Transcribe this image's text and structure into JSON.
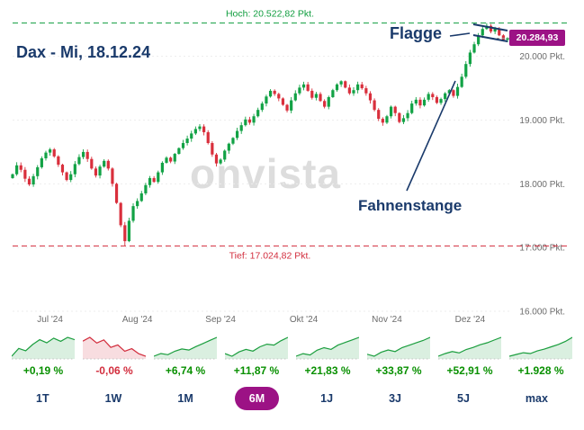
{
  "header": {
    "title": "Dax - Mi, 18.12.24"
  },
  "watermark": "onvista",
  "chart_data": {
    "type": "candlestick",
    "title": "Dax - Mi, 18.12.24",
    "hoch_label": "Hoch: 20.522,82 Pkt.",
    "tief_label": "Tief: 17.024,82 Pkt.",
    "hoch_value": 20522.82,
    "tief_value": 17024.82,
    "last_price": 20284.93,
    "last_price_label": "20.284,93",
    "y_range": [
      16000,
      20800
    ],
    "y_ticks": [
      {
        "value": 20000,
        "label": "20.000 Pkt."
      },
      {
        "value": 19000,
        "label": "19.000 Pkt."
      },
      {
        "value": 18000,
        "label": "18.000 Pkt."
      },
      {
        "value": 17000,
        "label": "17.000 Pkt."
      },
      {
        "value": 16000,
        "label": "16.000 Pkt."
      }
    ],
    "x_ticks": [
      {
        "index": 9,
        "label": "Jul '24"
      },
      {
        "index": 30,
        "label": "Aug '24"
      },
      {
        "index": 50,
        "label": "Sep '24"
      },
      {
        "index": 70,
        "label": "Okt '24"
      },
      {
        "index": 90,
        "label": "Nov '24"
      },
      {
        "index": 110,
        "label": "Dez '24"
      }
    ],
    "closes": [
      18150,
      18290,
      18220,
      18080,
      17990,
      18120,
      18260,
      18400,
      18490,
      18540,
      18430,
      18300,
      18180,
      18060,
      18150,
      18310,
      18420,
      18500,
      18390,
      18240,
      18130,
      18270,
      18360,
      18240,
      18000,
      17700,
      17350,
      17100,
      17420,
      17650,
      17730,
      17850,
      17980,
      18090,
      18030,
      18180,
      18330,
      18410,
      18350,
      18470,
      18560,
      18640,
      18710,
      18790,
      18860,
      18900,
      18810,
      18640,
      18460,
      18320,
      18380,
      18520,
      18630,
      18720,
      18830,
      18920,
      19010,
      18960,
      19060,
      19160,
      19260,
      19370,
      19460,
      19410,
      19340,
      19240,
      19150,
      19310,
      19420,
      19510,
      19560,
      19460,
      19350,
      19410,
      19300,
      19210,
      19360,
      19470,
      19560,
      19610,
      19510,
      19420,
      19470,
      19560,
      19500,
      19420,
      19310,
      19160,
      19020,
      18960,
      19060,
      19210,
      19110,
      18970,
      19030,
      19110,
      19260,
      19320,
      19230,
      19320,
      19410,
      19360,
      19270,
      19330,
      19420,
      19470,
      19380,
      19520,
      19680,
      19880,
      20060,
      20190,
      20330,
      20430,
      20480,
      20390,
      20440,
      20330,
      20260,
      20284.93
    ],
    "annotations": [
      {
        "text": "Flagge"
      },
      {
        "text": "Fahnenstange"
      }
    ],
    "colors": {
      "up": "#12a245",
      "down": "#d92f3c",
      "hoch": "#0f9d3e",
      "tief": "#d22d3d",
      "annotation": "#1a3a6b",
      "badge": "#9c1285",
      "axis_text": "#6b6b6b"
    }
  },
  "mini_charts": [
    {
      "label": "+0,19 %",
      "trend": "up",
      "values": [
        4.5,
        5.5,
        5.2,
        6.0,
        6.6,
        6.2,
        6.8,
        6.4,
        6.9,
        6.6
      ]
    },
    {
      "label": "-0,06 %",
      "trend": "down",
      "values": [
        6.2,
        6.8,
        5.9,
        6.4,
        5.2,
        5.6,
        4.6,
        5.0,
        4.2,
        3.8
      ]
    },
    {
      "label": "+6,74 %",
      "trend": "up",
      "values": [
        2.5,
        3.2,
        2.9,
        3.8,
        4.4,
        4.1,
        5.0,
        5.8,
        6.6,
        7.4
      ]
    },
    {
      "label": "+11,87 %",
      "trend": "up",
      "values": [
        3.0,
        2.4,
        3.4,
        4.0,
        3.6,
        4.6,
        5.2,
        5.0,
        6.0,
        6.8
      ]
    },
    {
      "label": "+21,83 %",
      "trend": "up",
      "values": [
        2.8,
        3.4,
        3.1,
        4.2,
        4.8,
        4.4,
        5.4,
        6.0,
        6.6,
        7.2
      ]
    },
    {
      "label": "+33,87 %",
      "trend": "up",
      "values": [
        3.5,
        3.0,
        4.0,
        4.6,
        4.2,
        5.2,
        5.8,
        6.4,
        7.0,
        7.8
      ]
    },
    {
      "label": "+52,91 %",
      "trend": "up",
      "values": [
        2.6,
        3.4,
        4.0,
        3.6,
        4.6,
        5.2,
        6.0,
        6.6,
        7.4,
        8.2
      ]
    },
    {
      "label": "+1.928 %",
      "trend": "up",
      "values": [
        2.0,
        2.6,
        3.2,
        2.9,
        3.8,
        4.4,
        5.2,
        6.0,
        7.0,
        8.4
      ]
    }
  ],
  "period_tabs": [
    {
      "label": "1T",
      "active": false
    },
    {
      "label": "1W",
      "active": false
    },
    {
      "label": "1M",
      "active": false
    },
    {
      "label": "6M",
      "active": true
    },
    {
      "label": "1J",
      "active": false
    },
    {
      "label": "3J",
      "active": false
    },
    {
      "label": "5J",
      "active": false
    },
    {
      "label": "max",
      "active": false
    }
  ]
}
